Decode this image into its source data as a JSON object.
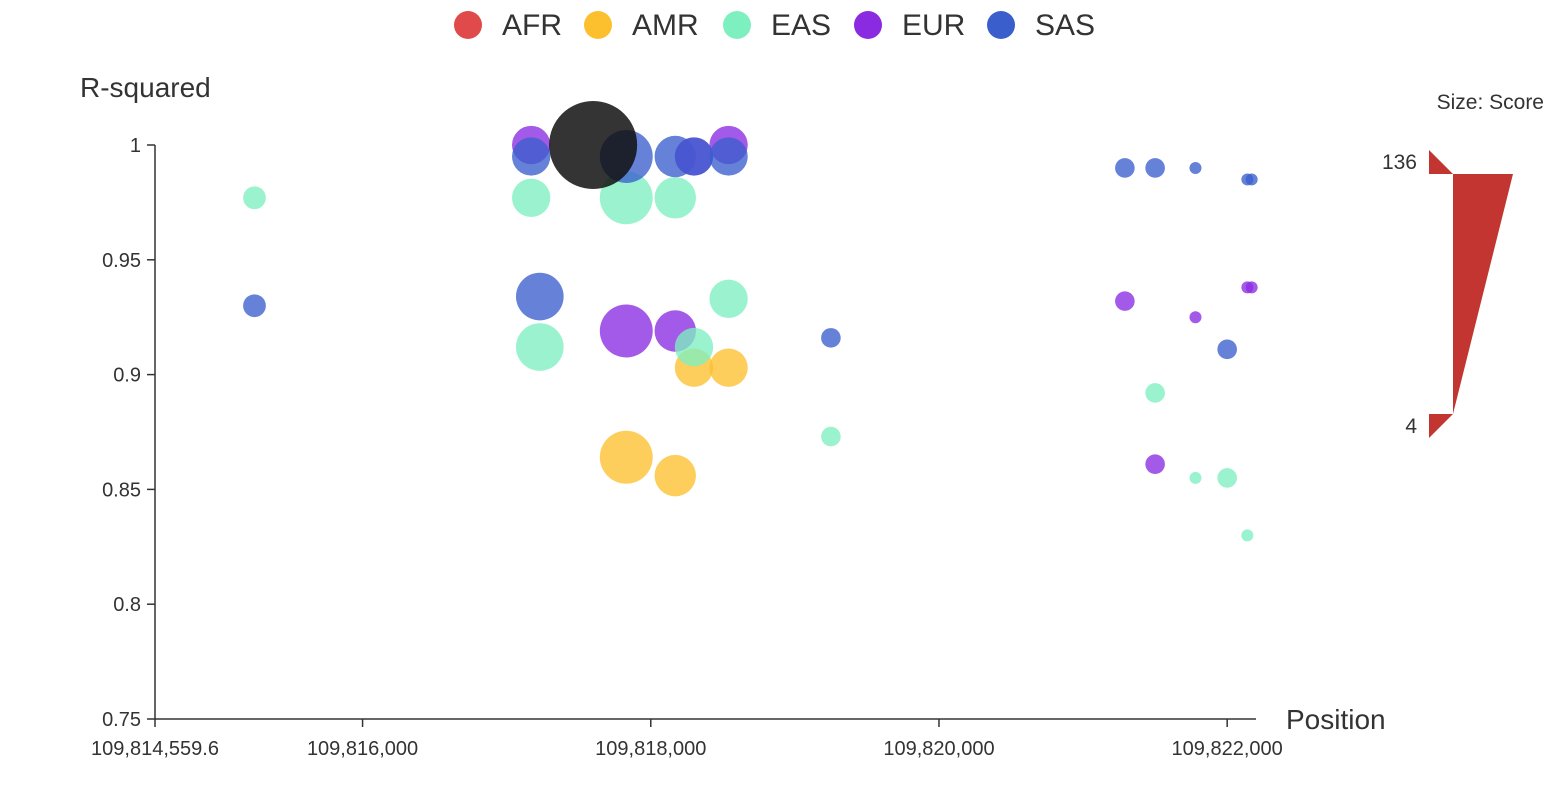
{
  "chart_data": {
    "type": "scatter",
    "title": "",
    "xlabel": "Position",
    "ylabel": "R-squared",
    "xlim": [
      109814559.6,
      109822200
    ],
    "ylim": [
      0.75,
      1
    ],
    "x_ticks": [
      {
        "value": 109814559.6,
        "label": "109,814,559.6"
      },
      {
        "value": 109816000,
        "label": "109,816,000"
      },
      {
        "value": 109818000,
        "label": "109,818,000"
      },
      {
        "value": 109820000,
        "label": "109,820,000"
      },
      {
        "value": 109822000,
        "label": "109,822,000"
      }
    ],
    "y_ticks": [
      {
        "value": 0.75,
        "label": "0.75"
      },
      {
        "value": 0.8,
        "label": "0.8"
      },
      {
        "value": 0.85,
        "label": "0.85"
      },
      {
        "value": 0.9,
        "label": "0.9"
      },
      {
        "value": 0.95,
        "label": "0.95"
      },
      {
        "value": 1,
        "label": "1"
      }
    ],
    "legend_position": "top",
    "grid": false,
    "size_legend": {
      "title": "Size: Score",
      "max_label": "136",
      "min_label": "4",
      "max": 136,
      "min": 4,
      "color": "#c23531"
    },
    "lead": {
      "name": "",
      "x": 109817600,
      "y": 1.0,
      "score": 136,
      "color": "#111111"
    },
    "series": [
      {
        "name": "AFR",
        "color": "#e04a4a",
        "points": []
      },
      {
        "name": "AMR",
        "color": "#fcc02e",
        "points": [
          {
            "x": 109817830,
            "y": 0.864,
            "score": 32
          },
          {
            "x": 109818170,
            "y": 0.856,
            "score": 18
          },
          {
            "x": 109818300,
            "y": 0.903,
            "score": 15
          },
          {
            "x": 109818540,
            "y": 0.903,
            "score": 15
          }
        ]
      },
      {
        "name": "EAS",
        "color": "#7ef0c0",
        "points": [
          {
            "x": 109815250,
            "y": 0.977,
            "score": 5
          },
          {
            "x": 109817170,
            "y": 0.977,
            "score": 15
          },
          {
            "x": 109817830,
            "y": 0.977,
            "score": 32
          },
          {
            "x": 109818170,
            "y": 0.977,
            "score": 18
          },
          {
            "x": 109817230,
            "y": 0.912,
            "score": 25
          },
          {
            "x": 109818300,
            "y": 0.912,
            "score": 15
          },
          {
            "x": 109818540,
            "y": 0.933,
            "score": 15
          },
          {
            "x": 109819250,
            "y": 0.873,
            "score": 4
          },
          {
            "x": 109821500,
            "y": 0.892,
            "score": 4
          },
          {
            "x": 109821780,
            "y": 0.855,
            "score": 3
          },
          {
            "x": 109822000,
            "y": 0.855,
            "score": 4
          },
          {
            "x": 109822140,
            "y": 0.83,
            "score": 3
          }
        ]
      },
      {
        "name": "EUR",
        "color": "#8a2be2",
        "points": [
          {
            "x": 109817170,
            "y": 1.0,
            "score": 15
          },
          {
            "x": 109817830,
            "y": 0.919,
            "score": 32
          },
          {
            "x": 109818170,
            "y": 0.919,
            "score": 18
          },
          {
            "x": 109818300,
            "y": 0.995,
            "score": 15
          },
          {
            "x": 109818540,
            "y": 1.0,
            "score": 15
          },
          {
            "x": 109821290,
            "y": 0.932,
            "score": 4
          },
          {
            "x": 109821500,
            "y": 0.861,
            "score": 4
          },
          {
            "x": 109821780,
            "y": 0.925,
            "score": 3
          },
          {
            "x": 109822140,
            "y": 0.938,
            "score": 3
          },
          {
            "x": 109822170,
            "y": 0.938,
            "score": 3
          }
        ]
      },
      {
        "name": "SAS",
        "color": "#3a5fcd",
        "points": [
          {
            "x": 109815250,
            "y": 0.93,
            "score": 5
          },
          {
            "x": 109817170,
            "y": 0.995,
            "score": 15
          },
          {
            "x": 109817230,
            "y": 0.934,
            "score": 25
          },
          {
            "x": 109817830,
            "y": 0.995,
            "score": 32
          },
          {
            "x": 109818170,
            "y": 0.995,
            "score": 18
          },
          {
            "x": 109818300,
            "y": 0.995,
            "score": 15
          },
          {
            "x": 109818540,
            "y": 0.995,
            "score": 15
          },
          {
            "x": 109819250,
            "y": 0.916,
            "score": 4
          },
          {
            "x": 109821290,
            "y": 0.99,
            "score": 4
          },
          {
            "x": 109821500,
            "y": 0.99,
            "score": 4
          },
          {
            "x": 109821780,
            "y": 0.99,
            "score": 3
          },
          {
            "x": 109822140,
            "y": 0.985,
            "score": 3
          },
          {
            "x": 109822170,
            "y": 0.985,
            "score": 3
          },
          {
            "x": 109822000,
            "y": 0.911,
            "score": 4
          }
        ]
      }
    ]
  }
}
